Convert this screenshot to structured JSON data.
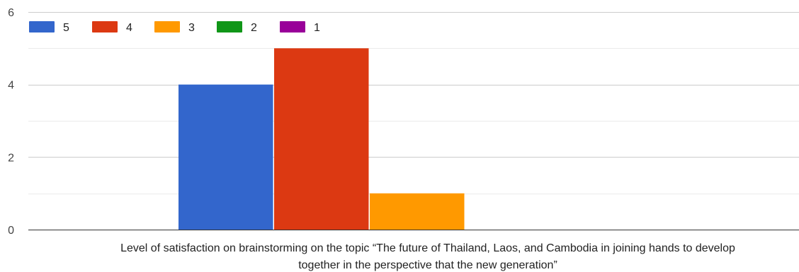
{
  "chart_data": {
    "type": "bar",
    "categories": [
      "Level of satisfaction on brainstorming on the topic “The future of Thailand, Laos, and Cambodia in joining hands to develop together in the perspective that the new generation”"
    ],
    "category_label_lines": [
      "Level of satisfaction on brainstorming on the topic “The future of Thailand, Laos, and Cambodia in joining hands to develop",
      "together in the perspective that the new generation”"
    ],
    "series": [
      {
        "name": "5",
        "values": [
          4
        ],
        "color": "#3366cc"
      },
      {
        "name": "4",
        "values": [
          5
        ],
        "color": "#dc3912"
      },
      {
        "name": "3",
        "values": [
          1
        ],
        "color": "#ff9900"
      },
      {
        "name": "2",
        "values": [
          0
        ],
        "color": "#109618"
      },
      {
        "name": "1",
        "values": [
          0
        ],
        "color": "#990099"
      }
    ],
    "ylim": [
      0,
      6
    ],
    "yticks": [
      0,
      2,
      4,
      6
    ],
    "grid": true,
    "legend_position": "top-left",
    "title": "",
    "xlabel": "",
    "ylabel": ""
  }
}
